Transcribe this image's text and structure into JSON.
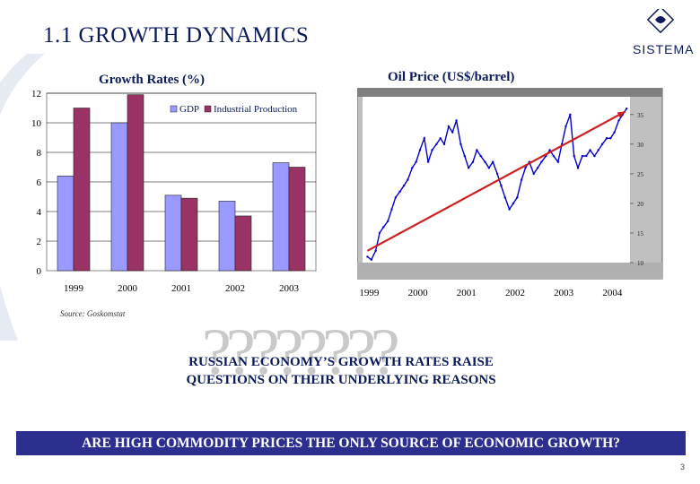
{
  "slide": {
    "title": "1.1 GROWTH DYNAMICS",
    "logo_text": "SISTEMA",
    "source": "Source: Goskomstat",
    "question_marks": "????????",
    "question_line1": "RUSSIAN ECONOMY’S GROWTH RATES RAISE",
    "question_line2": "QUESTIONS ON THEIR UNDERLYING REASONS",
    "banner": "ARE HIGH COMMODITY PRICES THE ONLY SOURCE OF ECONOMIC GROWTH?",
    "page_number": "3",
    "colors": {
      "navy": "#0a1a5c",
      "banner": "#2d2f8f",
      "gdp": "#9999ff",
      "industrial": "#993366",
      "plot_bg": "#c0c0c0",
      "trend": "#cc2020",
      "oil_line": "#0000cc"
    }
  },
  "chart_data": [
    {
      "type": "bar",
      "title": "Growth Rates (%)",
      "categories": [
        "1999",
        "2000",
        "2001",
        "2002",
        "2003"
      ],
      "series": [
        {
          "name": "GDP",
          "values": [
            6.4,
            10.0,
            5.1,
            4.7,
            7.3
          ]
        },
        {
          "name": "Industrial Production",
          "values": [
            11.0,
            11.9,
            4.9,
            3.7,
            7.0
          ]
        }
      ],
      "ylim": [
        0,
        12
      ],
      "yticks": [
        0,
        2,
        4,
        6,
        8,
        10,
        12
      ],
      "legend": "top-right",
      "grid": true
    },
    {
      "type": "line",
      "title": "Oil Price (US$/barrel)",
      "x_labels": [
        "1999",
        "2000",
        "2001",
        "2002",
        "2003",
        "2004"
      ],
      "y_right_ticks": [
        10,
        15,
        20,
        25,
        30,
        35
      ],
      "ylim": [
        10,
        38
      ],
      "xlim": [
        1998.9,
        2004.4
      ],
      "series": [
        {
          "values_x": [
            1999.0,
            1999.08,
            1999.17,
            1999.25,
            1999.33,
            1999.42,
            1999.5,
            1999.58,
            1999.67,
            1999.75,
            1999.83,
            1999.92,
            2000.0,
            2000.08,
            2000.17,
            2000.25,
            2000.33,
            2000.42,
            2000.5,
            2000.58,
            2000.67,
            2000.75,
            2000.83,
            2000.92,
            2001.0,
            2001.08,
            2001.17,
            2001.25,
            2001.33,
            2001.42,
            2001.5,
            2001.58,
            2001.67,
            2001.75,
            2001.83,
            2001.92,
            2002.0,
            2002.08,
            2002.17,
            2002.25,
            2002.33,
            2002.42,
            2002.5,
            2002.58,
            2002.67,
            2002.75,
            2002.83,
            2002.92,
            2003.0,
            2003.08,
            2003.17,
            2003.25,
            2003.33,
            2003.42,
            2003.5,
            2003.58,
            2003.67,
            2003.75,
            2003.83,
            2003.92,
            2004.0,
            2004.08,
            2004.17,
            2004.25,
            2004.33
          ],
          "values_y": [
            11,
            10.5,
            12,
            15,
            16,
            17,
            19,
            21,
            22,
            23,
            24,
            26,
            27,
            29,
            31,
            27,
            29,
            30,
            31,
            30,
            33,
            32,
            34,
            30,
            28,
            26,
            27,
            29,
            28,
            27,
            26,
            27,
            25,
            23,
            21,
            19,
            20,
            21,
            24,
            26,
            27,
            25,
            26,
            27,
            28,
            29,
            28,
            27,
            30,
            33,
            35,
            28,
            26,
            28,
            28,
            29,
            28,
            29,
            30,
            31,
            31,
            32,
            34,
            35,
            36
          ]
        },
        {
          "name": "Trend",
          "values_x": [
            1999.0,
            2004.3
          ],
          "values_y": [
            12,
            35.5
          ]
        }
      ]
    }
  ]
}
